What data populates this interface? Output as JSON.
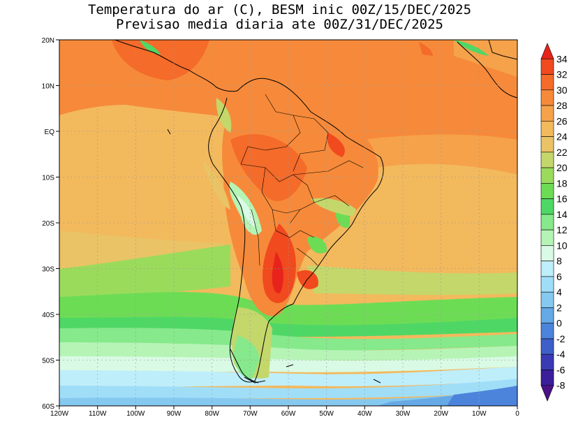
{
  "title": {
    "line1": "Temperatura do ar (C), BESM inic 00Z/15/DEC/2025",
    "line2": "Previsao media diaria ate 00Z/31/DEC/2025"
  },
  "map": {
    "lon_labels": [
      "120W",
      "110W",
      "100W",
      "90W",
      "80W",
      "70W",
      "60W",
      "50W",
      "40W",
      "30W",
      "20W",
      "10W",
      "0"
    ],
    "lat_labels": [
      "20N",
      "10N",
      "EQ",
      "10S",
      "20S",
      "30S",
      "40S",
      "50S",
      "60S"
    ],
    "lon_range": [
      -120,
      0
    ],
    "lat_range": [
      -60,
      20
    ],
    "grid": "dotted"
  },
  "colorbar": {
    "levels": [
      "34",
      "32",
      "30",
      "28",
      "26",
      "24",
      "22",
      "20",
      "18",
      "16",
      "14",
      "12",
      "10",
      "8",
      "6",
      "4",
      "2",
      "0",
      "-2",
      "-4",
      "-6",
      "-8"
    ],
    "colors": [
      "#e8231c",
      "#f04a1e",
      "#f46b2a",
      "#f68a3a",
      "#f5a24b",
      "#f3b95d",
      "#e9c365",
      "#c4d76b",
      "#9bdb5c",
      "#6ddc55",
      "#4fd766",
      "#86e98b",
      "#b6f4b6",
      "#d9fae4",
      "#bfeefb",
      "#a0def8",
      "#86c9f0",
      "#65a9e6",
      "#4c84dc",
      "#3e5fc8",
      "#3b3ab5",
      "#3a1e9a",
      "#4a1285"
    ]
  }
}
